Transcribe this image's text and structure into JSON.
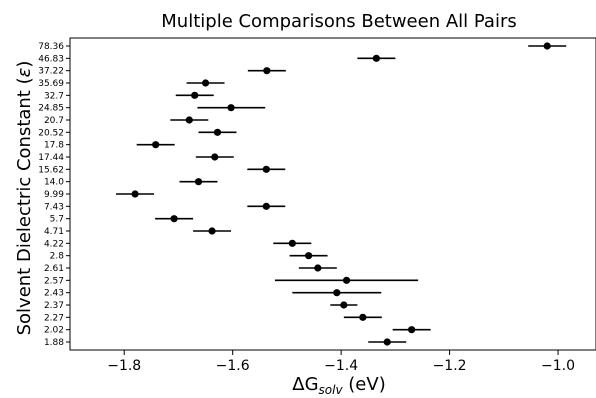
{
  "chart_data": {
    "type": "scatter",
    "title": "Multiple Comparisons Between All Pairs",
    "xlabel": {
      "base": "ΔG",
      "sub": "solv",
      "unit": " (eV)"
    },
    "ylabel": {
      "text": "Solvent Dielectric Constant (",
      "symbol": "ε",
      "close": ")"
    },
    "xlim": [
      -1.9,
      -0.93
    ],
    "xticks": [
      -1.8,
      -1.6,
      -1.4,
      -1.2,
      -1.0
    ],
    "xtick_labels": [
      "−1.8",
      "−1.6",
      "−1.4",
      "−1.2",
      "−1.0"
    ],
    "series": [
      {
        "points": [
          {
            "category": "78.36",
            "mean": -1.02,
            "lower": -1.055,
            "upper": -0.985
          },
          {
            "category": "46.83",
            "mean": -1.335,
            "lower": -1.37,
            "upper": -1.3
          },
          {
            "category": "37.22",
            "mean": -1.537,
            "lower": -1.572,
            "upper": -1.502
          },
          {
            "category": "35.69",
            "mean": -1.65,
            "lower": -1.685,
            "upper": -1.615
          },
          {
            "category": "32.7",
            "mean": -1.67,
            "lower": -1.705,
            "upper": -1.635
          },
          {
            "category": "24.85",
            "mean": -1.603,
            "lower": -1.665,
            "upper": -1.54
          },
          {
            "category": "20.7",
            "mean": -1.68,
            "lower": -1.715,
            "upper": -1.645
          },
          {
            "category": "20.52",
            "mean": -1.628,
            "lower": -1.663,
            "upper": -1.593
          },
          {
            "category": "17.8",
            "mean": -1.742,
            "lower": -1.777,
            "upper": -1.707
          },
          {
            "category": "17.44",
            "mean": -1.633,
            "lower": -1.668,
            "upper": -1.598
          },
          {
            "category": "15.62",
            "mean": -1.538,
            "lower": -1.573,
            "upper": -1.503
          },
          {
            "category": "14.0",
            "mean": -1.663,
            "lower": -1.698,
            "upper": -1.628
          },
          {
            "category": "9.99",
            "mean": -1.78,
            "lower": -1.815,
            "upper": -1.745
          },
          {
            "category": "7.43",
            "mean": -1.538,
            "lower": -1.573,
            "upper": -1.503
          },
          {
            "category": "5.7",
            "mean": -1.708,
            "lower": -1.743,
            "upper": -1.673
          },
          {
            "category": "4.71",
            "mean": -1.638,
            "lower": -1.673,
            "upper": -1.603
          },
          {
            "category": "4.22",
            "mean": -1.49,
            "lower": -1.525,
            "upper": -1.455
          },
          {
            "category": "2.8",
            "mean": -1.46,
            "lower": -1.495,
            "upper": -1.425
          },
          {
            "category": "2.61",
            "mean": -1.443,
            "lower": -1.478,
            "upper": -1.408
          },
          {
            "category": "2.57",
            "mean": -1.39,
            "lower": -1.522,
            "upper": -1.258
          },
          {
            "category": "2.43",
            "mean": -1.408,
            "lower": -1.49,
            "upper": -1.326
          },
          {
            "category": "2.37",
            "mean": -1.395,
            "lower": -1.42,
            "upper": -1.37
          },
          {
            "category": "2.27",
            "mean": -1.36,
            "lower": -1.395,
            "upper": -1.325
          },
          {
            "category": "2.02",
            "mean": -1.27,
            "lower": -1.305,
            "upper": -1.235
          },
          {
            "category": "1.88",
            "mean": -1.315,
            "lower": -1.35,
            "upper": -1.28
          }
        ]
      }
    ],
    "grid": false,
    "legend": false
  }
}
